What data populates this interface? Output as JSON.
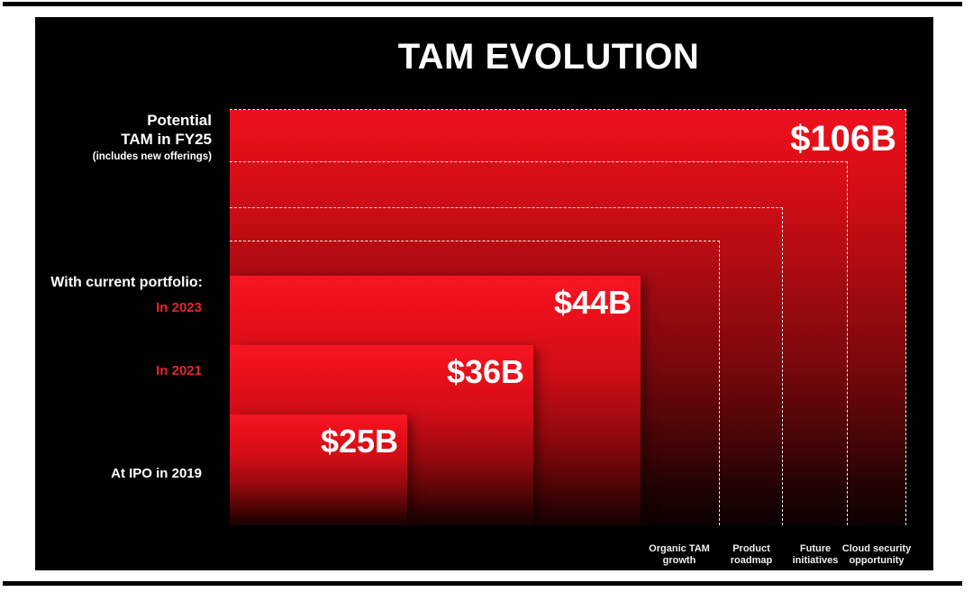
{
  "slide": {
    "title": "TAM EVOLUTION"
  },
  "chart_data": {
    "type": "bar",
    "style": "nested-rectangles",
    "title": "TAM EVOLUTION",
    "unit": "USD billions",
    "categories": [
      "At IPO in 2019",
      "In 2021",
      "In 2023",
      "Potential TAM in FY25 (includes new offerings)"
    ],
    "values": [
      25,
      36,
      44,
      106
    ],
    "value_labels": [
      "$25B",
      "$36B",
      "$44B",
      "$106B"
    ],
    "group_label": "With current portfolio:",
    "expansion_steps": [
      "Organic TAM growth",
      "Product roadmap",
      "Future initiatives",
      "Cloud security opportunity"
    ],
    "legend_position": "none",
    "grid": false
  },
  "left_labels": {
    "potential": {
      "line1": "Potential",
      "line2": "TAM in FY25",
      "line3": "(includes new offerings)"
    },
    "current_portfolio": "With current portfolio:",
    "year_2023": "In 2023",
    "year_2021": "In 2021",
    "ipo": "At IPO in 2019"
  },
  "values": {
    "fy25": "$106B",
    "y2023": "$44B",
    "y2021": "$36B",
    "ipo": "$25B"
  },
  "bottom_labels": [
    {
      "line1": "Organic TAM",
      "line2": "growth"
    },
    {
      "line1": "Product",
      "line2": "roadmap"
    },
    {
      "line1": "Future",
      "line2": "initiatives"
    },
    {
      "line1": "Cloud security",
      "line2": "opportunity"
    }
  ],
  "colors": {
    "page_bg": "#ffffff",
    "slide_bg": "#000000",
    "bright_red": "#ee1120",
    "dark_red": "#180202",
    "accent_red_text": "#e8232e",
    "text_white": "#ffffff"
  }
}
